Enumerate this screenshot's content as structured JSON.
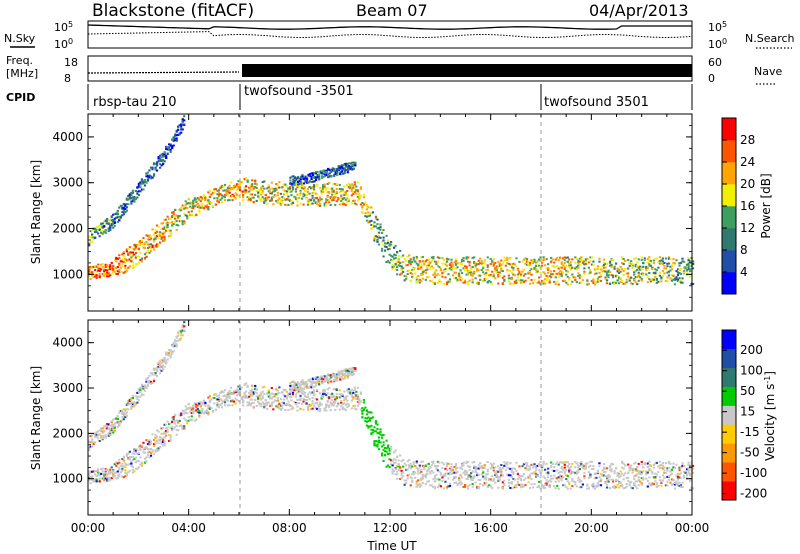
{
  "header": {
    "station": "Blackstone (fitACF)",
    "beam": "Beam 07",
    "date": "04/Apr/2013"
  },
  "top_panels": {
    "nsky_label": "N.Sky",
    "nsky_ticks": [
      "10^5",
      "10^0"
    ],
    "nsearch_label": "N.Search",
    "freq_label_line1": "Freq.",
    "freq_label_line2": "[MHz]",
    "freq_ticks": [
      "18",
      "8"
    ],
    "nave_label": "Nave",
    "nave_ticks": [
      "60",
      "0"
    ],
    "cpid_label": "CPID",
    "cpid_segments": [
      {
        "name": "rbsp-tau 210",
        "start_hour": 0
      },
      {
        "name": "twofsound -3501",
        "start_hour": 6
      },
      {
        "name": "twofsound 3501",
        "start_hour": 18
      }
    ]
  },
  "colors": {
    "power_scale": [
      "#0000ff",
      "#1f4fa8",
      "#2f7a6e",
      "#3f9f5f",
      "#f0f000",
      "#ffa500",
      "#ff5500",
      "#ff0000"
    ],
    "velocity_scale": [
      "#0000ff",
      "#1f4fa8",
      "#2f7a6e",
      "#00cc00",
      "#c8c8c8",
      "#ffcc00",
      "#ff9900",
      "#ff5500",
      "#ff0000"
    ]
  },
  "chart_data": [
    {
      "type": "heatmap",
      "panel": "power",
      "xlabel": "Time UT",
      "ylabel": "Slant Range [km]",
      "x_tick_labels": [
        "00:00",
        "04:00",
        "08:00",
        "12:00",
        "16:00",
        "20:00",
        "00:00"
      ],
      "x_ticks_hours": [
        0,
        4,
        8,
        12,
        16,
        20,
        24
      ],
      "xlim": [
        0,
        24
      ],
      "y_ticks": [
        1000,
        2000,
        3000,
        4000
      ],
      "ylim": [
        200,
        4500
      ],
      "colorbar": {
        "label": "Power [dB]",
        "ticks": [
          4,
          8,
          12,
          16,
          20,
          24,
          28
        ],
        "range": [
          0,
          32
        ]
      },
      "echo_bands": [
        {
          "name": "main band",
          "points": [
            [
              0,
              1050
            ],
            [
              1,
              1150
            ],
            [
              2,
              1500
            ],
            [
              3,
              2000
            ],
            [
              4,
              2450
            ],
            [
              5,
              2700
            ],
            [
              6,
              2900
            ],
            [
              7,
              2800
            ],
            [
              8,
              2780
            ],
            [
              9,
              2760
            ],
            [
              10,
              2780
            ],
            [
              10.7,
              2800
            ],
            [
              11.2,
              2200
            ],
            [
              11.8,
              1600
            ],
            [
              12.5,
              1150
            ],
            [
              14,
              1100
            ],
            [
              16,
              1100
            ],
            [
              18,
              1100
            ],
            [
              20,
              1100
            ],
            [
              22,
              1100
            ],
            [
              24,
              1100
            ]
          ],
          "half_width_km": [
            150,
            250,
            250,
            250,
            200,
            200,
            250,
            250,
            250,
            250,
            250,
            250,
            300,
            300,
            300,
            300,
            300,
            300,
            300,
            300,
            300
          ],
          "strength": [
            24,
            26,
            22,
            20,
            18,
            20,
            22,
            18,
            18,
            18,
            20,
            20,
            14,
            12,
            18,
            20,
            20,
            20,
            18,
            16,
            12
          ]
        },
        {
          "name": "upper band",
          "points": [
            [
              0,
              1800
            ],
            [
              1,
              2200
            ],
            [
              2,
              2900
            ],
            [
              3,
              3600
            ],
            [
              3.8,
              4400
            ]
          ],
          "half_width_km": [
            150,
            150,
            150,
            150,
            150
          ],
          "strength": [
            12,
            10,
            8,
            8,
            6
          ]
        },
        {
          "name": "high band",
          "points": [
            [
              8,
              3050
            ],
            [
              9,
              3150
            ],
            [
              10,
              3300
            ],
            [
              10.6,
              3400
            ]
          ],
          "half_width_km": [
            100,
            100,
            100,
            100
          ],
          "strength": [
            10,
            8,
            8,
            8
          ]
        }
      ]
    },
    {
      "type": "heatmap",
      "panel": "velocity",
      "xlabel": "Time UT",
      "ylabel": "Slant Range [km]",
      "x_tick_labels": [
        "00:00",
        "04:00",
        "08:00",
        "12:00",
        "16:00",
        "20:00",
        "00:00"
      ],
      "x_ticks_hours": [
        0,
        4,
        8,
        12,
        16,
        20,
        24
      ],
      "xlim": [
        0,
        24
      ],
      "y_ticks": [
        1000,
        2000,
        3000,
        4000
      ],
      "ylim": [
        200,
        4500
      ],
      "colorbar": {
        "label": "Velocity [m s^-1]",
        "ticks": [
          200,
          100,
          50,
          15,
          -15,
          -50,
          -100,
          -200
        ],
        "range": [
          -250,
          250
        ]
      }
    }
  ]
}
